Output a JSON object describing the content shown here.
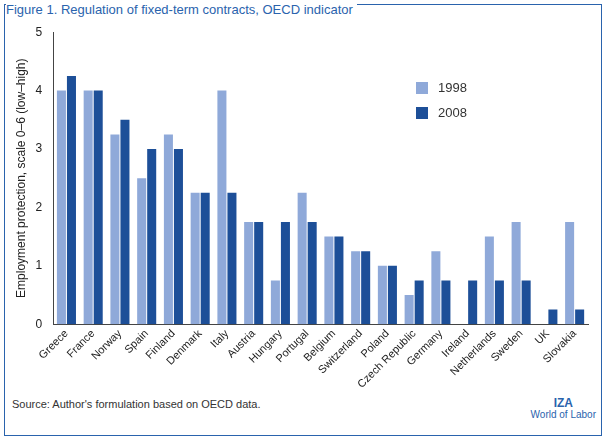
{
  "chart_data": {
    "type": "bar",
    "title": "Figure 1. Regulation of fixed-term contracts, OECD indicator",
    "y_label": "Employment protection, scale 0–6 (low–high)",
    "source": "Source: Author's formulation based on OECD data.",
    "brand": [
      "IZA",
      "World of Labor"
    ],
    "categories": [
      "Greece",
      "France",
      "Norway",
      "Spain",
      "Finland",
      "Denmark",
      "Italy",
      "Austria",
      "Hungary",
      "Portugal",
      "Belgium",
      "Switzerland",
      "Poland",
      "Czech Republic",
      "Germany",
      "Ireland",
      "Netherlands",
      "Sweden",
      "UK",
      "Slovakia"
    ],
    "series": [
      {
        "name": "1998",
        "color": "#8fa9d9",
        "values": [
          4,
          4,
          3.25,
          2.5,
          3.25,
          2.25,
          4,
          1.75,
          0.75,
          2.25,
          1.5,
          1.25,
          1,
          0.5,
          1.25,
          0,
          1.5,
          1.75,
          0,
          1.75
        ]
      },
      {
        "name": "2008",
        "color": "#1d4f98",
        "values": [
          4.25,
          4,
          3.5,
          3,
          3,
          2.25,
          2.25,
          1.75,
          1.75,
          1.75,
          1.5,
          1.25,
          1,
          0.75,
          0.75,
          0.75,
          0.75,
          0.75,
          0.25,
          0.25
        ]
      }
    ],
    "ylim": [
      0,
      5
    ],
    "yticks": [
      0,
      1,
      2,
      3,
      4,
      5
    ],
    "grid": false,
    "legend": "upper right"
  }
}
